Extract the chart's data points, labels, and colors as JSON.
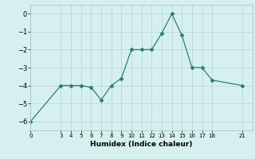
{
  "x": [
    0,
    3,
    4,
    5,
    6,
    7,
    8,
    9,
    10,
    11,
    12,
    13,
    14,
    15,
    16,
    17,
    18,
    21
  ],
  "y": [
    -6,
    -4,
    -4,
    -4,
    -4.1,
    -4.8,
    -4,
    -3.6,
    -2,
    -2,
    -2,
    -1.1,
    0,
    -1.2,
    -3,
    -3,
    -3.7,
    -4
  ],
  "line_color": "#2e7d6e",
  "marker_color": "#2e7d6e",
  "bg_color": "#d6f0ef",
  "grid_color": "#b8d8d5",
  "xlabel": "Humidex (Indice chaleur)",
  "xlim": [
    0,
    22
  ],
  "ylim": [
    -6.5,
    0.5
  ],
  "yticks": [
    0,
    -1,
    -2,
    -3,
    -4,
    -5,
    -6
  ],
  "xticks": [
    0,
    3,
    4,
    5,
    6,
    7,
    8,
    9,
    10,
    11,
    12,
    13,
    14,
    15,
    16,
    17,
    18,
    21
  ]
}
